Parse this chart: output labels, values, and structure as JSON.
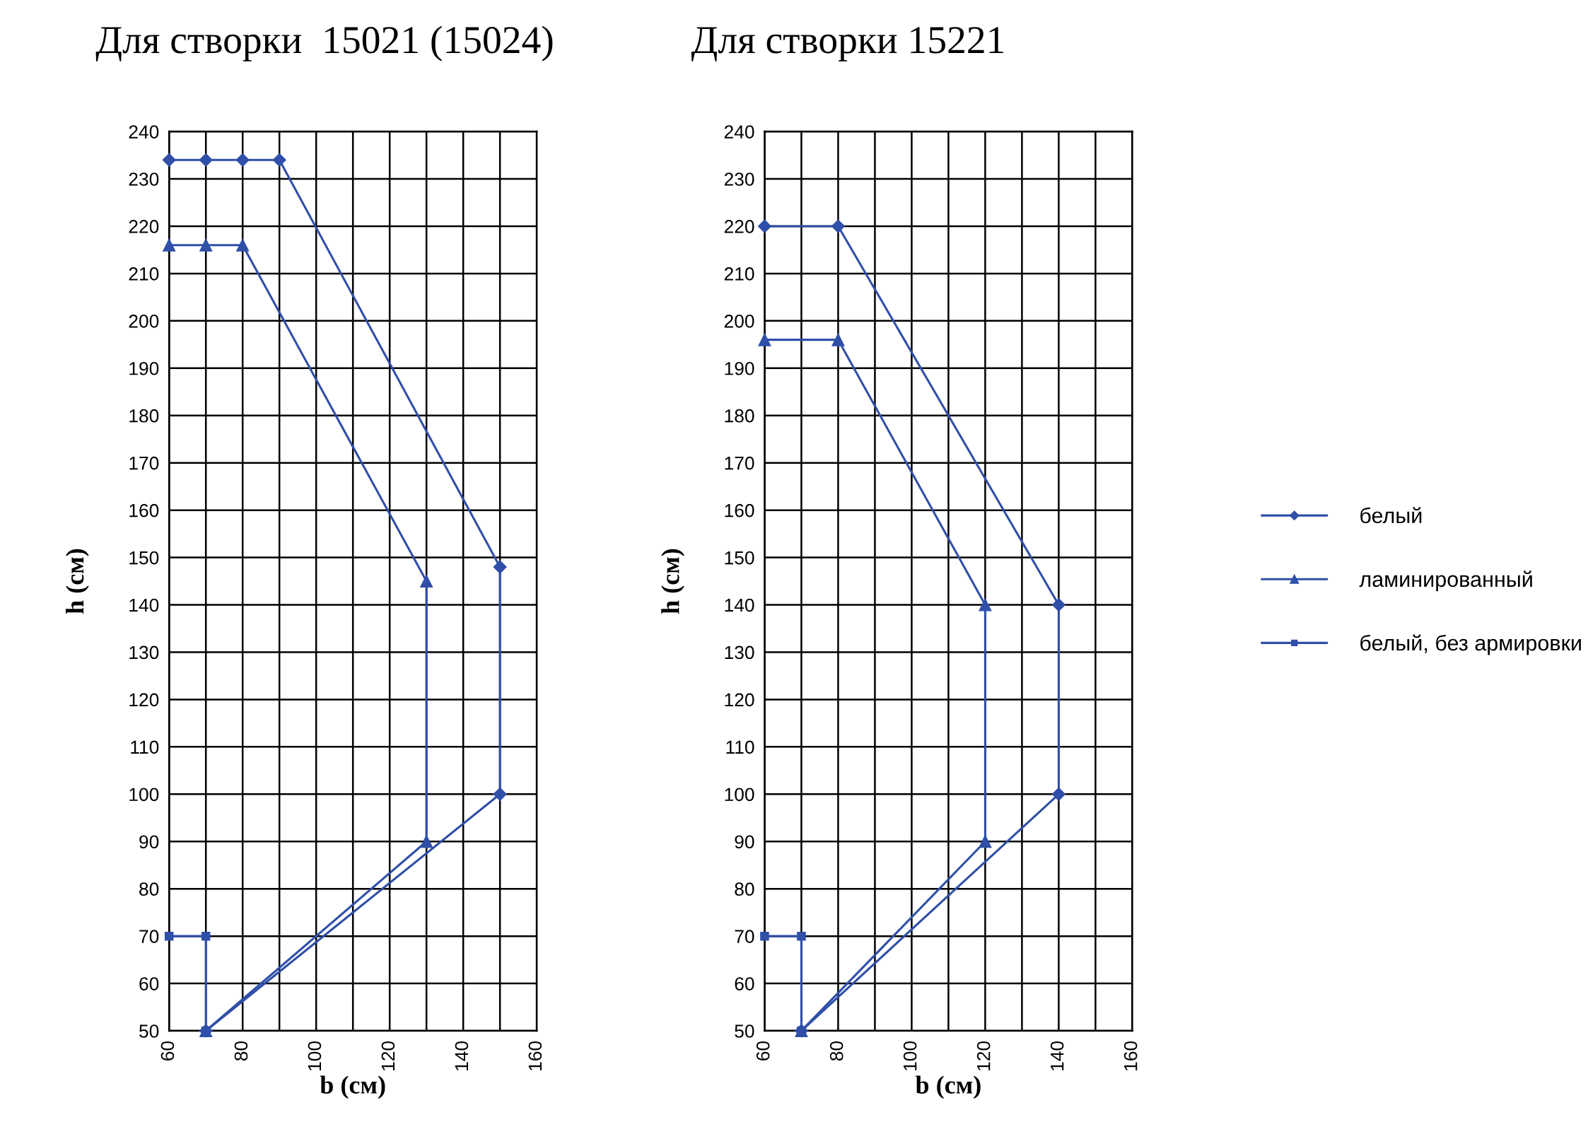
{
  "chart_data": [
    {
      "type": "line",
      "title": "Для створки  15021 (15024)",
      "xlabel": "b (см)",
      "ylabel": "h (см)",
      "xlim": [
        60,
        160
      ],
      "ylim": [
        50,
        240
      ],
      "xticks": [
        60,
        {
          "value": 70,
          "label": null
        },
        80,
        {
          "value": 90,
          "label": null
        },
        100,
        {
          "value": 110,
          "label": null
        },
        120,
        {
          "value": 130,
          "label": null
        },
        140,
        {
          "value": 150,
          "label": null
        },
        160
      ],
      "yticks": [
        50,
        60,
        70,
        80,
        90,
        100,
        110,
        120,
        130,
        140,
        150,
        160,
        170,
        180,
        190,
        200,
        210,
        220,
        230,
        240
      ],
      "grid": true,
      "series": [
        {
          "color": "#2f4fa8",
          "marker": "diamond",
          "x": [
            60,
            70,
            80,
            90,
            150,
            150,
            70
          ],
          "values": [
            234,
            234,
            234,
            234,
            148,
            100,
            50
          ]
        },
        {
          "color": "#2f4fa8",
          "marker": "triangle",
          "x": [
            60,
            70,
            80,
            130,
            130,
            70
          ],
          "values": [
            216,
            216,
            216,
            145,
            90,
            50
          ]
        },
        {
          "color": "#2f4fa8",
          "marker": "square",
          "x": [
            60,
            70,
            70
          ],
          "values": [
            70,
            70,
            50
          ]
        }
      ]
    },
    {
      "type": "line",
      "title": "Для створки 15221",
      "xlabel": "b (см)",
      "ylabel": "h (см)",
      "xlim": [
        60,
        160
      ],
      "ylim": [
        50,
        240
      ],
      "xticks": [
        60,
        {
          "value": 70,
          "label": null
        },
        80,
        {
          "value": 90,
          "label": null
        },
        100,
        {
          "value": 110,
          "label": null
        },
        120,
        {
          "value": 130,
          "label": null
        },
        140,
        {
          "value": 150,
          "label": null
        },
        160
      ],
      "yticks": [
        50,
        60,
        70,
        80,
        90,
        100,
        110,
        120,
        130,
        140,
        150,
        160,
        170,
        180,
        190,
        200,
        210,
        220,
        230,
        240
      ],
      "grid": true,
      "legend": "right",
      "series": [
        {
          "name": "белый",
          "color": "#2f4fa8",
          "marker": "diamond",
          "x": [
            60,
            80,
            140,
            140,
            70
          ],
          "values": [
            220,
            220,
            140,
            100,
            50
          ]
        },
        {
          "name": "ламинированный",
          "color": "#2f4fa8",
          "marker": "triangle",
          "x": [
            60,
            80,
            120,
            120,
            70
          ],
          "values": [
            196,
            196,
            140,
            90,
            50
          ]
        },
        {
          "name": "белый, без армировки",
          "color": "#2f4fa8",
          "marker": "square",
          "x": [
            60,
            70,
            70
          ],
          "values": [
            70,
            70,
            50
          ]
        }
      ]
    }
  ]
}
